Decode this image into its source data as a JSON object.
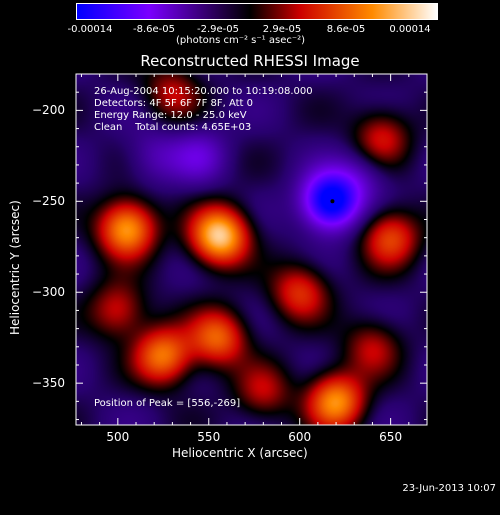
{
  "colorbar": {
    "tick_labels": [
      "-0.00014",
      "-8.6e-05",
      "-2.9e-05",
      "2.9e-05",
      "8.6e-05",
      "0.00014"
    ],
    "units": "(photons cm⁻² s⁻¹ asec⁻²)"
  },
  "chart_data": {
    "type": "heatmap",
    "title": "Reconstructed RHESSI Image",
    "xlabel": "Heliocentric X (arcsec)",
    "ylabel": "Heliocentric Y (arcsec)",
    "xlim": [
      477,
      670
    ],
    "ylim": [
      -373,
      -180
    ],
    "xticks": [
      "500",
      "550",
      "600",
      "650"
    ],
    "yticks": [
      "-200",
      "-250",
      "-300",
      "-350"
    ],
    "clim": [
      -0.00014,
      0.00014
    ],
    "colormap": [
      "#0000ff",
      "#7a00ff",
      "#000000",
      "#cc0000",
      "#ff8a00",
      "#ffffff"
    ],
    "peak": [
      556,
      -269
    ],
    "minimum_marker": [
      618,
      -250
    ],
    "bright_sources": [
      {
        "x": 556,
        "y": -269,
        "value": 0.00014
      },
      {
        "x": 505,
        "y": -265,
        "value": 0.00012
      },
      {
        "x": 525,
        "y": -335,
        "value": 0.0001
      },
      {
        "x": 555,
        "y": -325,
        "value": 9e-05
      },
      {
        "x": 620,
        "y": -360,
        "value": 0.00011
      },
      {
        "x": 650,
        "y": -270,
        "value": 8e-05
      },
      {
        "x": 600,
        "y": -300,
        "value": 7e-05
      },
      {
        "x": 500,
        "y": -310,
        "value": 6e-05
      },
      {
        "x": 640,
        "y": -330,
        "value": 5e-05
      },
      {
        "x": 530,
        "y": -190,
        "value": 5e-05
      },
      {
        "x": 645,
        "y": -215,
        "value": 6e-05
      },
      {
        "x": 580,
        "y": -355,
        "value": 5e-05
      }
    ],
    "dark_sources": [
      {
        "x": 617,
        "y": -250,
        "value": -0.00014
      },
      {
        "x": 545,
        "y": -225,
        "value": -4e-05
      },
      {
        "x": 635,
        "y": -235,
        "value": -3e-05
      },
      {
        "x": 520,
        "y": -225,
        "value": -3e-05
      }
    ]
  },
  "info": {
    "time": "26-Aug-2004 10:15:20.000 to 10:19:08.000",
    "detectors": "Detectors: 4F 5F 6F 7F 8F, Att 0",
    "energy": "Energy Range: 12.0 - 25.0 keV",
    "clean": "Clean    Total counts: 4.65E+03",
    "peak": "Position of Peak = [556,-269]"
  },
  "footer": "23-Jun-2013 10:07"
}
